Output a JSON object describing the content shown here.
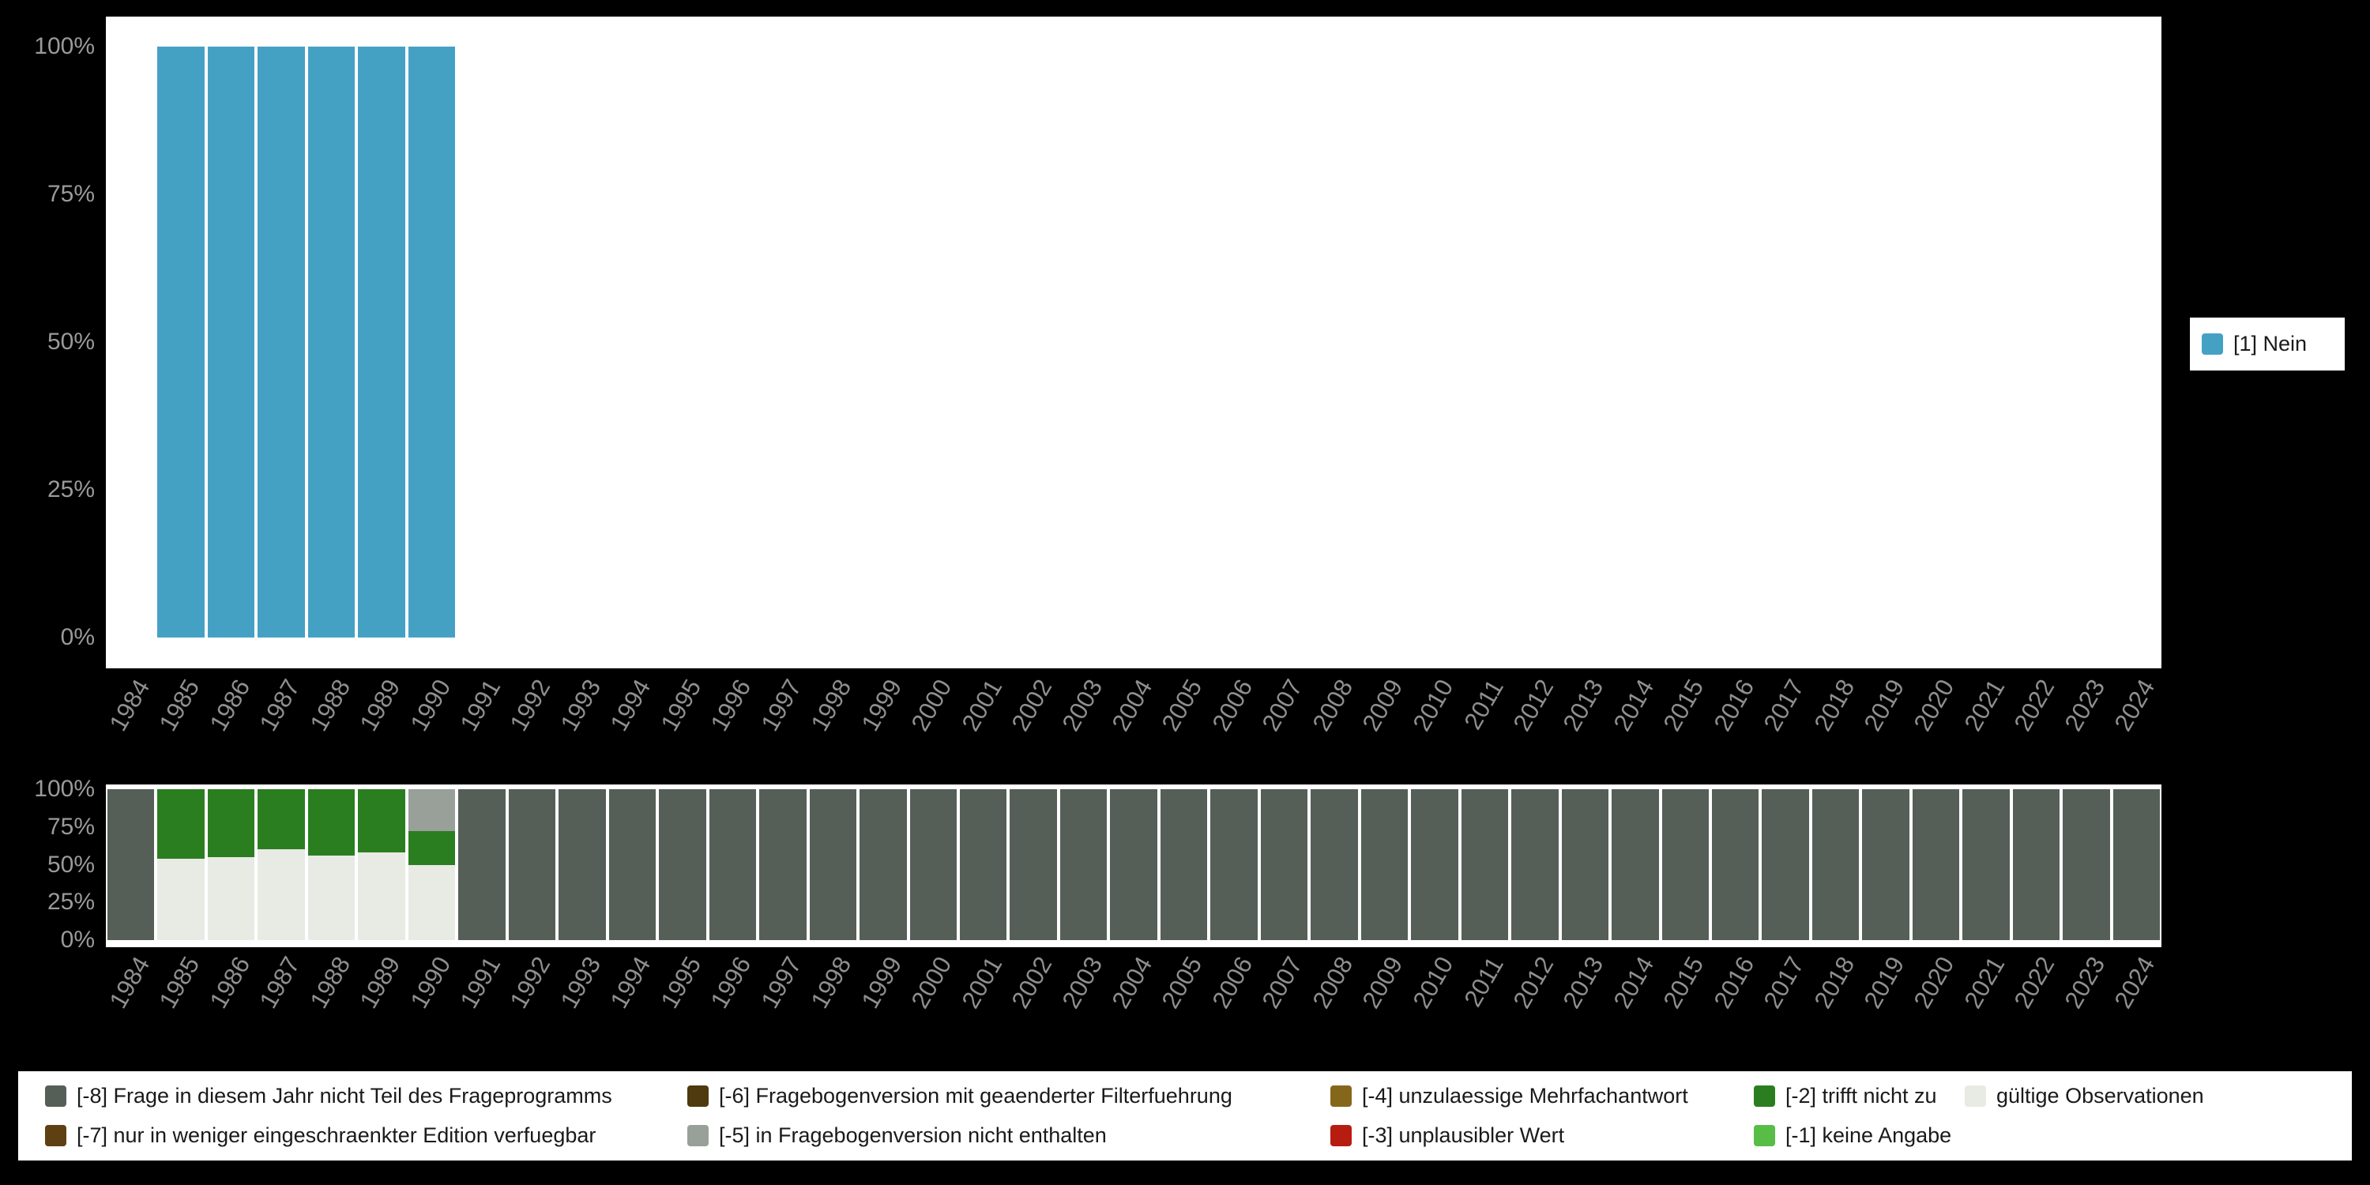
{
  "colors": {
    "background": "#000000",
    "plot_background": "#ffffff",
    "axis_text": "#8f8f8f",
    "legend_text": "#1a1a1a",
    "cat_nein": "#45a1c4",
    "m8": "#555f58",
    "m7": "#5e4012",
    "m6": "#4e3a0e",
    "m5": "#99a09a",
    "m4": "#85671c",
    "m3": "#b71c10",
    "m2": "#2b7e20",
    "m1": "#58bd47",
    "valid": "#e8eae4"
  },
  "chart_data": [
    {
      "type": "bar",
      "subtype": "stacked-percent",
      "name": "value-distribution",
      "title": "",
      "xlabel": "",
      "ylabel": "",
      "unit": "%",
      "ylim": [
        0,
        100
      ],
      "grid": false,
      "legend_position": "right",
      "yticks": [
        "100%",
        "75%",
        "50%",
        "25%",
        "0%"
      ],
      "categories": [
        "1984",
        "1985",
        "1986",
        "1987",
        "1988",
        "1989",
        "1990",
        "1991",
        "1992",
        "1993",
        "1994",
        "1995",
        "1996",
        "1997",
        "1998",
        "1999",
        "2000",
        "2001",
        "2002",
        "2003",
        "2004",
        "2005",
        "2006",
        "2007",
        "2008",
        "2009",
        "2010",
        "2011",
        "2012",
        "2013",
        "2014",
        "2015",
        "2016",
        "2017",
        "2018",
        "2019",
        "2020",
        "2021",
        "2022",
        "2023",
        "2024"
      ],
      "series": [
        {
          "name": "[1] Nein",
          "color_key": "cat_nein",
          "values": [
            0,
            100,
            100,
            100,
            100,
            100,
            100,
            0,
            0,
            0,
            0,
            0,
            0,
            0,
            0,
            0,
            0,
            0,
            0,
            0,
            0,
            0,
            0,
            0,
            0,
            0,
            0,
            0,
            0,
            0,
            0,
            0,
            0,
            0,
            0,
            0,
            0,
            0,
            0,
            0,
            0
          ]
        }
      ],
      "legend": [
        {
          "label": "[1] Nein",
          "color_key": "cat_nein"
        }
      ]
    },
    {
      "type": "bar",
      "subtype": "stacked-percent",
      "name": "missing-values-distribution",
      "title": "",
      "xlabel": "",
      "ylabel": "",
      "unit": "%",
      "ylim": [
        0,
        100
      ],
      "grid": false,
      "legend_position": "bottom",
      "yticks": [
        "100%",
        "75%",
        "50%",
        "25%",
        "0%"
      ],
      "categories": [
        "1984",
        "1985",
        "1986",
        "1987",
        "1988",
        "1989",
        "1990",
        "1991",
        "1992",
        "1993",
        "1994",
        "1995",
        "1996",
        "1997",
        "1998",
        "1999",
        "2000",
        "2001",
        "2002",
        "2003",
        "2004",
        "2005",
        "2006",
        "2007",
        "2008",
        "2009",
        "2010",
        "2011",
        "2012",
        "2013",
        "2014",
        "2015",
        "2016",
        "2017",
        "2018",
        "2019",
        "2020",
        "2021",
        "2022",
        "2023",
        "2024"
      ],
      "series": [
        {
          "name": "gültige Observationen",
          "color_key": "valid",
          "values": [
            0,
            54,
            55,
            60,
            56,
            58,
            50,
            0,
            0,
            0,
            0,
            0,
            0,
            0,
            0,
            0,
            0,
            0,
            0,
            0,
            0,
            0,
            0,
            0,
            0,
            0,
            0,
            0,
            0,
            0,
            0,
            0,
            0,
            0,
            0,
            0,
            0,
            0,
            0,
            0,
            0
          ]
        },
        {
          "name": "[-2] trifft nicht zu",
          "color_key": "m2",
          "values": [
            0,
            46,
            45,
            40,
            44,
            42,
            22,
            0,
            0,
            0,
            0,
            0,
            0,
            0,
            0,
            0,
            0,
            0,
            0,
            0,
            0,
            0,
            0,
            0,
            0,
            0,
            0,
            0,
            0,
            0,
            0,
            0,
            0,
            0,
            0,
            0,
            0,
            0,
            0,
            0,
            0
          ]
        },
        {
          "name": "[-5] in Fragebogenversion nicht enthalten",
          "color_key": "m5",
          "values": [
            0,
            0,
            0,
            0,
            0,
            0,
            28,
            0,
            0,
            0,
            0,
            0,
            0,
            0,
            0,
            0,
            0,
            0,
            0,
            0,
            0,
            0,
            0,
            0,
            0,
            0,
            0,
            0,
            0,
            0,
            0,
            0,
            0,
            0,
            0,
            0,
            0,
            0,
            0,
            0,
            0
          ]
        },
        {
          "name": "[-8] Frage in diesem Jahr nicht Teil des Frageprogramms",
          "color_key": "m8",
          "values": [
            100,
            0,
            0,
            0,
            0,
            0,
            0,
            100,
            100,
            100,
            100,
            100,
            100,
            100,
            100,
            100,
            100,
            100,
            100,
            100,
            100,
            100,
            100,
            100,
            100,
            100,
            100,
            100,
            100,
            100,
            100,
            100,
            100,
            100,
            100,
            100,
            100,
            100,
            100,
            100,
            100
          ]
        }
      ]
    }
  ],
  "missing_legend": {
    "row1": [
      {
        "label": "[-8] Frage in diesem Jahr nicht Teil des Frageprogramms",
        "color_key": "m8"
      },
      {
        "label": "[-6] Fragebogenversion mit geaenderter Filterfuehrung",
        "color_key": "m6"
      },
      {
        "label": "[-4] unzulaessige Mehrfachantwort",
        "color_key": "m4"
      },
      {
        "label": "[-2] trifft nicht zu",
        "color_key": "m2"
      },
      {
        "label": "gültige Observationen",
        "color_key": "valid"
      }
    ],
    "row2": [
      {
        "label": "[-7] nur in weniger eingeschraenkter Edition verfuegbar",
        "color_key": "m7"
      },
      {
        "label": "[-5] in Fragebogenversion nicht enthalten",
        "color_key": "m5"
      },
      {
        "label": "[-3] unplausibler Wert",
        "color_key": "m3"
      },
      {
        "label": "[-1] keine Angabe",
        "color_key": "m1"
      }
    ]
  }
}
